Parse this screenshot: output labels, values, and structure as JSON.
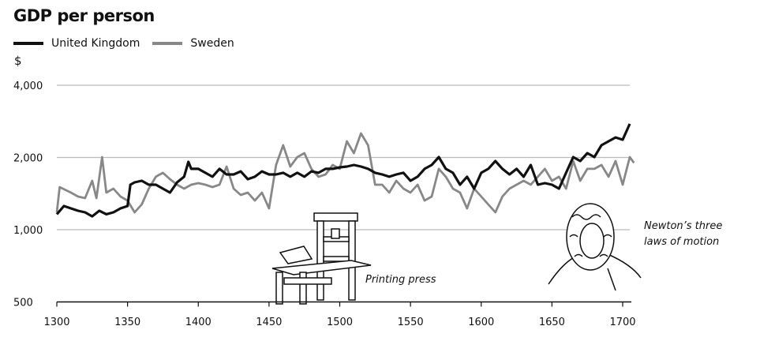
{
  "chart_data": {
    "type": "line",
    "title": "GDP per person",
    "ylabel": "$",
    "xlabel": "",
    "yscale": "log2",
    "ylim": [
      500,
      4000
    ],
    "xlim": [
      1300,
      1710
    ],
    "yticks": [
      500,
      1000,
      2000,
      4000
    ],
    "ytick_labels": [
      "500",
      "1,000",
      "2,000",
      "4,000"
    ],
    "xticks": [
      1300,
      1350,
      1400,
      1450,
      1500,
      1550,
      1600,
      1650,
      1700
    ],
    "xtick_labels": [
      "1300",
      "1350",
      "1400",
      "1450",
      "1500",
      "1550",
      "1600",
      "1650",
      "1700"
    ],
    "grid": "horizontal",
    "legend": "top-left",
    "series": [
      {
        "name": "United Kingdom",
        "color": "#111111",
        "x": [
          1300,
          1305,
          1310,
          1315,
          1320,
          1325,
          1330,
          1335,
          1340,
          1345,
          1350,
          1352,
          1355,
          1360,
          1365,
          1370,
          1375,
          1380,
          1385,
          1390,
          1393,
          1395,
          1400,
          1405,
          1410,
          1415,
          1420,
          1425,
          1430,
          1435,
          1440,
          1445,
          1450,
          1455,
          1460,
          1465,
          1470,
          1475,
          1480,
          1485,
          1490,
          1495,
          1500,
          1505,
          1510,
          1515,
          1520,
          1525,
          1530,
          1535,
          1540,
          1545,
          1550,
          1555,
          1560,
          1565,
          1570,
          1575,
          1580,
          1585,
          1590,
          1595,
          1600,
          1605,
          1610,
          1615,
          1620,
          1625,
          1630,
          1635,
          1640,
          1645,
          1650,
          1655,
          1660,
          1665,
          1670,
          1675,
          1680,
          1685,
          1690,
          1695,
          1700,
          1705
        ],
        "values": [
          1160,
          1255,
          1227,
          1199,
          1181,
          1137,
          1199,
          1160,
          1181,
          1227,
          1255,
          1540,
          1576,
          1600,
          1540,
          1540,
          1483,
          1428,
          1576,
          1662,
          1918,
          1793,
          1793,
          1726,
          1662,
          1793,
          1700,
          1700,
          1751,
          1624,
          1662,
          1751,
          1700,
          1700,
          1726,
          1662,
          1726,
          1662,
          1751,
          1726,
          1793,
          1793,
          1819,
          1833,
          1861,
          1833,
          1793,
          1726,
          1700,
          1662,
          1700,
          1726,
          1600,
          1662,
          1793,
          1861,
          2008,
          1793,
          1726,
          1540,
          1662,
          1483,
          1726,
          1793,
          1933,
          1793,
          1700,
          1793,
          1662,
          1861,
          1540,
          1563,
          1540,
          1483,
          1726,
          2008,
          1933,
          2085,
          2008,
          2250,
          2336,
          2425,
          2371,
          2761
        ]
      },
      {
        "name": "Sweden",
        "color": "#888888",
        "x": [
          1300,
          1302,
          1310,
          1315,
          1320,
          1325,
          1328,
          1332,
          1335,
          1340,
          1345,
          1350,
          1355,
          1360,
          1365,
          1370,
          1375,
          1380,
          1385,
          1390,
          1395,
          1400,
          1405,
          1410,
          1415,
          1420,
          1425,
          1430,
          1435,
          1440,
          1445,
          1450,
          1455,
          1460,
          1465,
          1470,
          1475,
          1480,
          1485,
          1490,
          1495,
          1500,
          1505,
          1510,
          1515,
          1520,
          1525,
          1530,
          1535,
          1540,
          1545,
          1550,
          1555,
          1560,
          1565,
          1570,
          1575,
          1580,
          1585,
          1590,
          1595,
          1600,
          1605,
          1610,
          1615,
          1620,
          1625,
          1630,
          1635,
          1640,
          1645,
          1650,
          1655,
          1660,
          1665,
          1670,
          1675,
          1680,
          1685,
          1690,
          1695,
          1700,
          1705,
          1708
        ],
        "values": [
          1181,
          1505,
          1428,
          1375,
          1354,
          1600,
          1354,
          2008,
          1428,
          1483,
          1375,
          1323,
          1181,
          1274,
          1483,
          1662,
          1726,
          1624,
          1540,
          1483,
          1540,
          1563,
          1540,
          1505,
          1540,
          1833,
          1483,
          1396,
          1428,
          1323,
          1428,
          1227,
          1861,
          2250,
          1833,
          2008,
          2085,
          1793,
          1662,
          1700,
          1861,
          1793,
          2336,
          2085,
          2520,
          2250,
          1540,
          1540,
          1428,
          1600,
          1483,
          1428,
          1540,
          1323,
          1375,
          1793,
          1662,
          1483,
          1428,
          1227,
          1483,
          1375,
          1274,
          1181,
          1375,
          1483,
          1540,
          1600,
          1540,
          1662,
          1793,
          1600,
          1662,
          1483,
          1933,
          1600,
          1793,
          1793,
          1861,
          1662,
          1933,
          1540,
          2008,
          1900
        ]
      }
    ],
    "annotations": [
      {
        "x": 1450,
        "label": "Printing press"
      },
      {
        "x": 1687,
        "label": "Newton's three laws of motion"
      }
    ],
    "annotation_labels": {
      "press": "Printing press",
      "newton_1": "Newton’s three",
      "newton_2": "laws of motion"
    }
  }
}
